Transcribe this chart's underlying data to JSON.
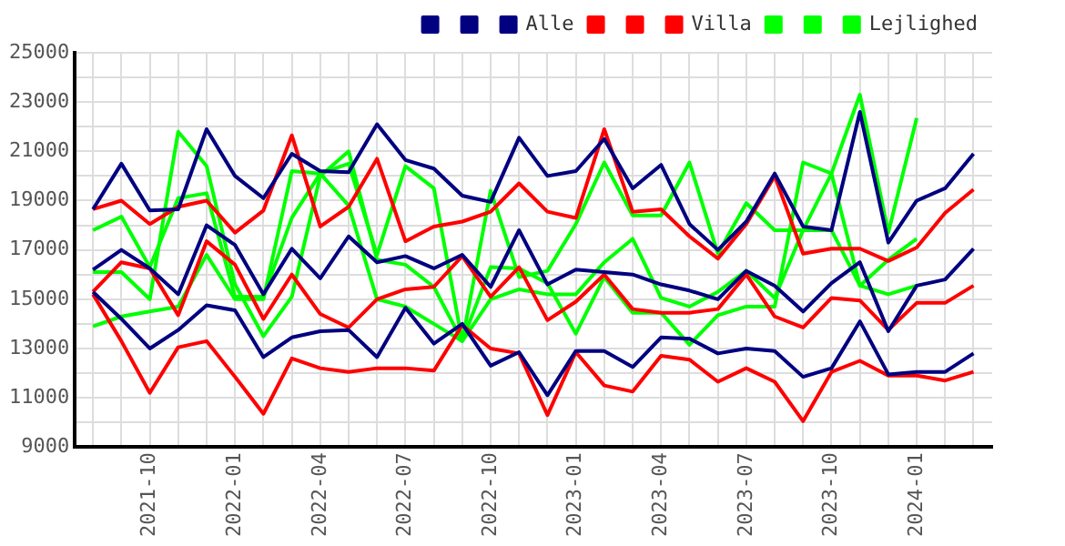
{
  "chart_data": {
    "type": "line",
    "x": [
      "2021-08",
      "2021-09",
      "2021-10",
      "2021-11",
      "2021-12",
      "2022-01",
      "2022-02",
      "2022-03",
      "2022-04",
      "2022-05",
      "2022-06",
      "2022-07",
      "2022-08",
      "2022-09",
      "2022-10",
      "2022-11",
      "2022-12",
      "2023-01",
      "2023-02",
      "2023-03",
      "2023-04",
      "2023-05",
      "2023-06",
      "2023-07",
      "2023-08",
      "2023-09",
      "2023-10",
      "2023-11",
      "2023-12",
      "2024-01",
      "2024-02",
      "2024-03"
    ],
    "series": [
      {
        "color": "#000080",
        "values": [
          18650,
          20500,
          18600,
          18650,
          21900,
          20000,
          19100,
          20900,
          20200,
          20150,
          22100,
          20650,
          20300,
          19200,
          18950,
          21550,
          20000,
          20200,
          21500,
          19500,
          20450,
          18050,
          17000,
          18150,
          20100,
          17950,
          17800,
          22600,
          17300,
          19000,
          19500,
          20900
        ]
      },
      {
        "color": "#000080",
        "values": [
          16200,
          17000,
          16250,
          15200,
          18000,
          17200,
          15200,
          17050,
          15850,
          17550,
          16500,
          16750,
          16250,
          16800,
          15500,
          17800,
          15600,
          16200,
          16100,
          16000,
          15600,
          15350,
          15000,
          16150,
          15550,
          14500,
          15650,
          16500,
          13700,
          15550,
          15800,
          17050
        ]
      },
      {
        "name": "Alle",
        "color": "#000080",
        "values": [
          15300,
          14200,
          13000,
          13750,
          14750,
          14550,
          12650,
          13450,
          13700,
          13750,
          12650,
          14650,
          13200,
          14000,
          12300,
          12850,
          11100,
          12900,
          12900,
          12250,
          13450,
          13400,
          12800,
          13000,
          12900,
          11850,
          12200,
          14100,
          11950,
          12050,
          12050,
          12800
        ]
      },
      {
        "color": "#ff0000",
        "values": [
          18650,
          19000,
          18050,
          18750,
          19000,
          17700,
          18600,
          21650,
          17950,
          18750,
          20700,
          17350,
          17950,
          18150,
          18550,
          19700,
          18550,
          18300,
          21900,
          18550,
          18650,
          17550,
          16650,
          18050,
          20000,
          16850,
          17050,
          17050,
          16550,
          17100,
          18500,
          19450
        ]
      },
      {
        "color": "#ff0000",
        "values": [
          15300,
          16500,
          16250,
          14350,
          17350,
          16400,
          14200,
          16000,
          14400,
          13850,
          15000,
          15400,
          15500,
          16750,
          15100,
          16300,
          14150,
          14900,
          16000,
          14600,
          14450,
          14450,
          14600,
          16000,
          14300,
          13850,
          15050,
          14950,
          13750,
          14850,
          14850,
          15550
        ]
      },
      {
        "name": "Villa",
        "color": "#ff0000",
        "values": [
          15200,
          13300,
          11200,
          13050,
          13300,
          11850,
          10350,
          12600,
          12200,
          12050,
          12200,
          12200,
          12100,
          13950,
          13000,
          12800,
          10300,
          12850,
          11500,
          11250,
          12700,
          12550,
          11650,
          12200,
          11650,
          10050,
          12050,
          12500,
          11900,
          11900,
          11700,
          12050
        ]
      },
      {
        "color": "#00ff00",
        "values": [
          17800,
          18350,
          16300,
          19100,
          19300,
          15100,
          15100,
          18300,
          20100,
          20500,
          16800,
          20400,
          19500,
          13300,
          19400,
          15900,
          16150,
          18050,
          20550,
          18400,
          18400,
          20550,
          16850,
          18900,
          17800,
          17800,
          20100,
          23300,
          17700,
          22350,
          null,
          null
        ]
      },
      {
        "color": "#00ff00",
        "values": [
          16100,
          16100,
          15000,
          21800,
          20400,
          15600,
          13500,
          15100,
          20000,
          21000,
          16600,
          16400,
          15500,
          13300,
          16300,
          16250,
          15650,
          13600,
          15900,
          14450,
          14450,
          13150,
          14350,
          14700,
          14700,
          20550,
          20100,
          15550,
          15200,
          15550,
          null,
          null
        ]
      },
      {
        "name": "Lejlighed",
        "color": "#00ff00",
        "values": [
          13900,
          14300,
          14500,
          14700,
          16800,
          15000,
          15000,
          20200,
          20100,
          18800,
          15000,
          14700,
          14000,
          13300,
          15000,
          15400,
          15200,
          15200,
          16500,
          17450,
          15050,
          14700,
          15300,
          16150,
          15050,
          17800,
          17800,
          15550,
          16600,
          17450,
          null,
          null
        ]
      }
    ],
    "xlim": [
      "2021-07-12",
      "2024-03-21"
    ],
    "xticks": [
      {
        "value": "2021-08",
        "label": null
      },
      {
        "value": "2021-09",
        "label": null
      },
      "2021-10",
      {
        "value": "2021-11",
        "label": null
      },
      {
        "value": "2021-12",
        "label": null
      },
      "2022-01",
      {
        "value": "2022-02",
        "label": null
      },
      {
        "value": "2022-03",
        "label": null
      },
      "2022-04",
      {
        "value": "2022-05",
        "label": null
      },
      {
        "value": "2022-06",
        "label": null
      },
      "2022-07",
      {
        "value": "2022-08",
        "label": null
      },
      {
        "value": "2022-09",
        "label": null
      },
      "2022-10",
      {
        "value": "2022-11",
        "label": null
      },
      {
        "value": "2022-12",
        "label": null
      },
      "2023-01",
      {
        "value": "2023-02",
        "label": null
      },
      {
        "value": "2023-03",
        "label": null
      },
      "2023-04",
      {
        "value": "2023-05",
        "label": null
      },
      {
        "value": "2023-06",
        "label": null
      },
      "2023-07",
      {
        "value": "2023-08",
        "label": null
      },
      {
        "value": "2023-09",
        "label": null
      },
      "2023-10",
      {
        "value": "2023-11",
        "label": null
      },
      {
        "value": "2023-12",
        "label": null
      },
      "2024-01",
      {
        "value": "2024-02",
        "label": null
      },
      {
        "value": "2024-03",
        "label": null
      }
    ],
    "ylim": [
      9000,
      25000
    ],
    "yticks": [
      9000,
      {
        "value": 10000,
        "label": null
      },
      11000,
      {
        "value": 12000,
        "label": null
      },
      13000,
      {
        "value": 14000,
        "label": null
      },
      15000,
      {
        "value": 16000,
        "label": null
      },
      17000,
      {
        "value": 18000,
        "label": null
      },
      19000,
      {
        "value": 20000,
        "label": null
      },
      21000,
      {
        "value": 22000,
        "label": null
      },
      23000,
      {
        "value": 24000,
        "label": null
      },
      25000
    ],
    "grid": true,
    "legend": "top right",
    "marker": "none",
    "line_style": "solid"
  }
}
